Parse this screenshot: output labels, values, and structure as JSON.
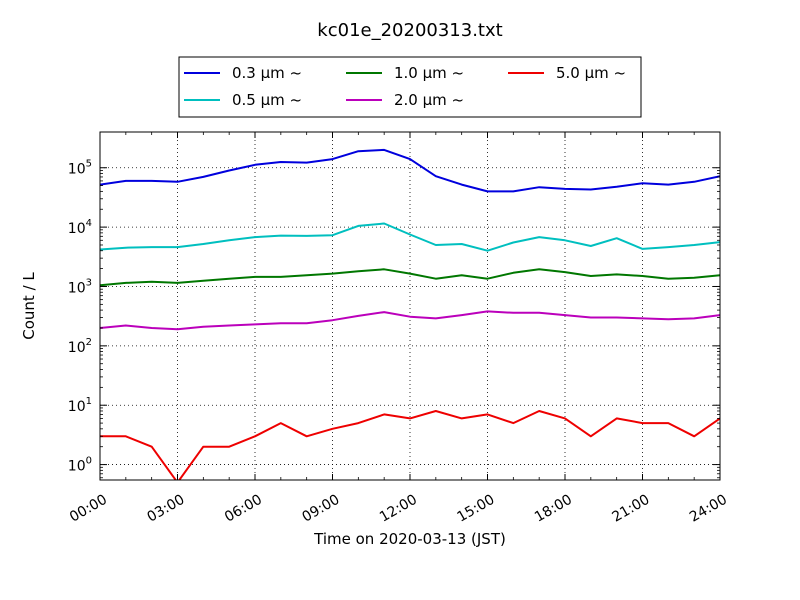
{
  "chart_data": {
    "type": "line",
    "title": "kc01e_20200313.txt",
    "xlabel": "Time on 2020-03-13 (JST)",
    "ylabel": "Count / L",
    "yscale": "log",
    "xlim": [
      "00:00",
      "24:00"
    ],
    "ylim": [
      0.55,
      400000
    ],
    "grid": true,
    "legend_position": "top",
    "x_tick_labels": [
      "00:00",
      "03:00",
      "06:00",
      "09:00",
      "12:00",
      "15:00",
      "18:00",
      "21:00",
      "24:00"
    ],
    "y_tick_labels": [
      {
        "value": 1,
        "base": "10",
        "exp": "0"
      },
      {
        "value": 10,
        "base": "10",
        "exp": "1"
      },
      {
        "value": 100,
        "base": "10",
        "exp": "2"
      },
      {
        "value": 1000,
        "base": "10",
        "exp": "3"
      },
      {
        "value": 10000,
        "base": "10",
        "exp": "4"
      },
      {
        "value": 100000,
        "base": "10",
        "exp": "5"
      }
    ],
    "x": [
      "00:00",
      "01:00",
      "02:00",
      "03:00",
      "04:00",
      "05:00",
      "06:00",
      "07:00",
      "08:00",
      "09:00",
      "10:00",
      "11:00",
      "12:00",
      "13:00",
      "14:00",
      "15:00",
      "16:00",
      "17:00",
      "18:00",
      "19:00",
      "20:00",
      "21:00",
      "22:00",
      "23:00",
      "24:00"
    ],
    "series": [
      {
        "name": "0.3 μm ~",
        "color": "#0000dd",
        "values": [
          52000,
          60000,
          60000,
          58000,
          70000,
          90000,
          112000,
          125000,
          122000,
          140000,
          190000,
          200000,
          140000,
          72000,
          52000,
          40000,
          40000,
          47000,
          44000,
          43000,
          48000,
          55000,
          52000,
          58000,
          72000
        ]
      },
      {
        "name": "0.5 μm ~",
        "color": "#00bfbf",
        "values": [
          4200,
          4500,
          4600,
          4600,
          5200,
          6000,
          6800,
          7200,
          7100,
          7300,
          10500,
          11500,
          7500,
          5000,
          5200,
          4000,
          5500,
          6800,
          6000,
          4800,
          6500,
          4300,
          4600,
          5000,
          5600
        ]
      },
      {
        "name": "1.0 μm ~",
        "color": "#007700",
        "values": [
          1050,
          1150,
          1200,
          1150,
          1250,
          1350,
          1450,
          1450,
          1550,
          1650,
          1800,
          1950,
          1650,
          1350,
          1550,
          1350,
          1700,
          1950,
          1750,
          1500,
          1600,
          1500,
          1350,
          1400,
          1550
        ]
      },
      {
        "name": "2.0 μm ~",
        "color": "#bb00bb",
        "values": [
          200,
          220,
          200,
          190,
          210,
          220,
          230,
          240,
          240,
          270,
          320,
          370,
          310,
          290,
          330,
          380,
          360,
          360,
          330,
          300,
          300,
          290,
          280,
          290,
          330
        ]
      },
      {
        "name": "5.0 μm ~",
        "color": "#ee0000",
        "values": [
          3,
          3,
          2,
          0.5,
          2,
          2,
          3,
          5,
          3,
          4,
          5,
          7,
          6,
          8,
          6,
          7,
          5,
          8,
          6,
          3,
          6,
          5,
          5,
          3,
          6
        ]
      }
    ]
  }
}
